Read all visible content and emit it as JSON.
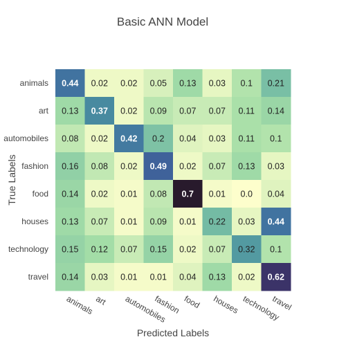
{
  "chart_data": {
    "type": "heatmap",
    "title": "Basic ANN Model",
    "xlabel": "Predicted Labels",
    "ylabel": "True Labels",
    "x_categories": [
      "animals",
      "art",
      "automobiles",
      "fashion",
      "food",
      "houses",
      "technology",
      "travel"
    ],
    "y_categories": [
      "animals",
      "art",
      "automobiles",
      "fashion",
      "food",
      "houses",
      "technology",
      "travel"
    ],
    "values": [
      [
        0.44,
        0.02,
        0.02,
        0.05,
        0.13,
        0.03,
        0.1,
        0.21
      ],
      [
        0.13,
        0.37,
        0.02,
        0.09,
        0.07,
        0.07,
        0.11,
        0.14
      ],
      [
        0.08,
        0.02,
        0.42,
        0.2,
        0.04,
        0.03,
        0.11,
        0.1
      ],
      [
        0.16,
        0.08,
        0.02,
        0.49,
        0.02,
        0.07,
        0.13,
        0.03
      ],
      [
        0.14,
        0.02,
        0.01,
        0.08,
        0.7,
        0.01,
        0.0,
        0.04
      ],
      [
        0.13,
        0.07,
        0.01,
        0.09,
        0.01,
        0.22,
        0.03,
        0.44
      ],
      [
        0.15,
        0.12,
        0.07,
        0.15,
        0.02,
        0.07,
        0.32,
        0.1
      ],
      [
        0.14,
        0.03,
        0.01,
        0.01,
        0.04,
        0.13,
        0.02,
        0.62
      ]
    ],
    "value_labels": [
      [
        "0.44",
        "0.02",
        "0.02",
        "0.05",
        "0.13",
        "0.03",
        "0.1",
        "0.21"
      ],
      [
        "0.13",
        "0.37",
        "0.02",
        "0.09",
        "0.07",
        "0.07",
        "0.11",
        "0.14"
      ],
      [
        "0.08",
        "0.02",
        "0.42",
        "0.2",
        "0.04",
        "0.03",
        "0.11",
        "0.1"
      ],
      [
        "0.16",
        "0.08",
        "0.02",
        "0.49",
        "0.02",
        "0.07",
        "0.13",
        "0.03"
      ],
      [
        "0.14",
        "0.02",
        "0.01",
        "0.08",
        "0.7",
        "0.01",
        "0.0",
        "0.04"
      ],
      [
        "0.13",
        "0.07",
        "0.01",
        "0.09",
        "0.01",
        "0.22",
        "0.03",
        "0.44"
      ],
      [
        "0.15",
        "0.12",
        "0.07",
        "0.15",
        "0.02",
        "0.07",
        "0.32",
        "0.1"
      ],
      [
        "0.14",
        "0.03",
        "0.01",
        "0.01",
        "0.04",
        "0.13",
        "0.02",
        "0.62"
      ]
    ],
    "zlim": [
      0,
      0.7
    ],
    "colorscale": "deep",
    "colorscale_stops": [
      "#fdfecc",
      "#a5dea7",
      "#6eb7a4",
      "#4a90a0",
      "#3e6ba0",
      "#433f84",
      "#281a2c"
    ],
    "grid": false,
    "legend": "none"
  }
}
